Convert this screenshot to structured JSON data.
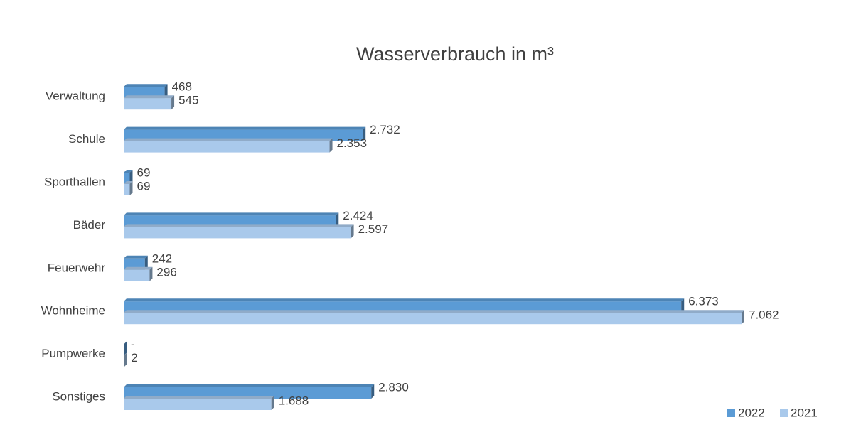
{
  "chart_data": {
    "type": "bar",
    "orientation": "horizontal",
    "title": "Wasserverbrauch in m³",
    "categories": [
      "Verwaltung",
      "Schule",
      "Sporthallen",
      "Bäder",
      "Feuerwehr",
      "Wohnheime",
      "Pumpwerke",
      "Sonstiges"
    ],
    "series": [
      {
        "name": "2022",
        "color": "#5b9bd5",
        "values": [
          468,
          2732,
          69,
          2424,
          242,
          6373,
          0,
          2830
        ],
        "value_labels": [
          "468",
          "2.732",
          "69",
          "2.424",
          "242",
          "6.373",
          "-",
          "2.830"
        ]
      },
      {
        "name": "2021",
        "color": "#a9c9eb",
        "values": [
          545,
          2353,
          69,
          2597,
          296,
          7062,
          2,
          1688
        ],
        "value_labels": [
          "545",
          "2.353",
          "69",
          "2.597",
          "296",
          "7.062",
          "2",
          "1.688"
        ]
      }
    ],
    "legend": "bottom-right"
  }
}
